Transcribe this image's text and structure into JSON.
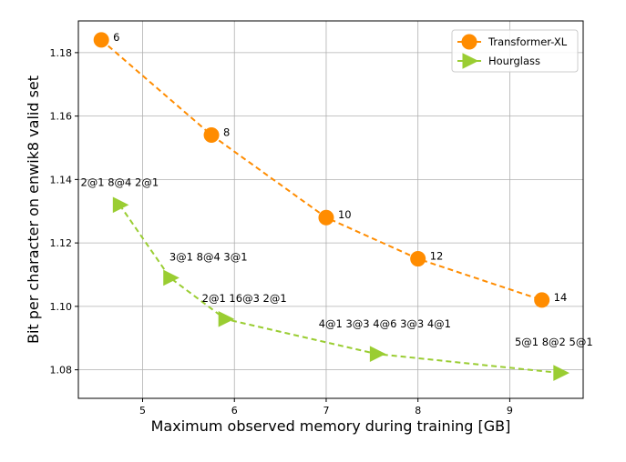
{
  "chart_data": {
    "type": "line",
    "title": "",
    "xlabel": "Maximum observed memory during training [GB]",
    "ylabel": "Bit per character on enwik8 valid set",
    "xlim": [
      4.3,
      9.8
    ],
    "ylim": [
      1.071,
      1.19
    ],
    "x_ticks": [
      5,
      6,
      7,
      8,
      9
    ],
    "y_ticks": [
      1.08,
      1.1,
      1.12,
      1.14,
      1.16,
      1.18
    ],
    "y_tick_labels": [
      "1.08",
      "1.10",
      "1.12",
      "1.14",
      "1.16",
      "1.18"
    ],
    "grid": true,
    "legend_position": "top-right",
    "series": [
      {
        "name": "Transformer-XL",
        "color": "#ff8c00",
        "marker": "circle",
        "line_style": "dashed",
        "points": [
          {
            "x": 4.55,
            "y": 1.184,
            "label": "6"
          },
          {
            "x": 5.75,
            "y": 1.154,
            "label": "8"
          },
          {
            "x": 7.0,
            "y": 1.128,
            "label": "10"
          },
          {
            "x": 8.0,
            "y": 1.115,
            "label": "12"
          },
          {
            "x": 9.35,
            "y": 1.102,
            "label": "14"
          }
        ]
      },
      {
        "name": "Hourglass",
        "color": "#9acd32",
        "marker": "triangle-right",
        "line_style": "dashed",
        "points": [
          {
            "x": 4.75,
            "y": 1.132,
            "label": "2@1 8@4 2@1"
          },
          {
            "x": 5.3,
            "y": 1.109,
            "label": "3@1 8@4 3@1"
          },
          {
            "x": 5.9,
            "y": 1.096,
            "label": "2@1 16@3 2@1"
          },
          {
            "x": 7.55,
            "y": 1.085,
            "label": "4@1 3@3 4@6 3@3 4@1"
          },
          {
            "x": 9.55,
            "y": 1.079,
            "label": "5@1 8@2 5@1"
          }
        ]
      }
    ]
  }
}
